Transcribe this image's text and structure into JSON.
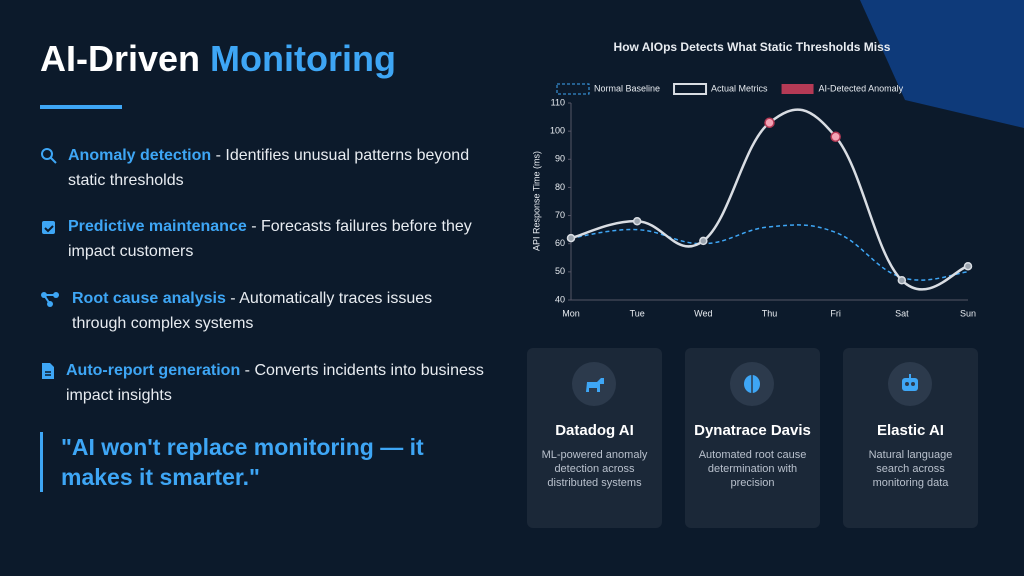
{
  "header": {
    "title_plain": "AI-Driven",
    "title_accent": "Monitoring"
  },
  "bullets": [
    {
      "label": "Anomaly detection",
      "text": "- Identifies unusual patterns beyond static thresholds"
    },
    {
      "label": "Predictive maintenance",
      "text": "- Forecasts failures before they impact customers"
    },
    {
      "label": "Root cause analysis",
      "text": "- Automatically traces issues through complex systems"
    },
    {
      "label": "Auto-report generation",
      "text": "- Converts incidents into business impact insights"
    }
  ],
  "quote": "\"AI won't replace monitoring — it makes it smarter.\"",
  "cards": [
    {
      "title": "Datadog AI",
      "text": "ML-powered anomaly detection across distributed systems"
    },
    {
      "title": "Dynatrace Davis",
      "text": "Automated root cause determination with precision"
    },
    {
      "title": "Elastic AI",
      "text": "Natural language search across monitoring data"
    }
  ],
  "chart_data": {
    "type": "line",
    "title": "How AIOps Detects What Static Thresholds Miss",
    "y_label": "API Response Time (ms)",
    "categories": [
      "Mon",
      "Tue",
      "Wed",
      "Thu",
      "Fri",
      "Sat",
      "Sun"
    ],
    "series": [
      {
        "name": "Normal Baseline",
        "color": "#3ea6f5",
        "values": [
          62,
          65,
          60,
          66,
          64,
          48,
          50
        ]
      },
      {
        "name": "Actual Metrics",
        "color": "#d9dde3",
        "values": [
          62,
          68,
          61,
          103,
          98,
          47,
          52
        ]
      },
      {
        "name": "AI-Detected Anomaly",
        "color": "#b53a55",
        "values": [
          null,
          null,
          null,
          103,
          98,
          null,
          null
        ]
      }
    ],
    "ylim": [
      40,
      110
    ],
    "yticks": [
      40,
      50,
      60,
      70,
      80,
      90,
      100,
      110
    ],
    "grid": false
  }
}
